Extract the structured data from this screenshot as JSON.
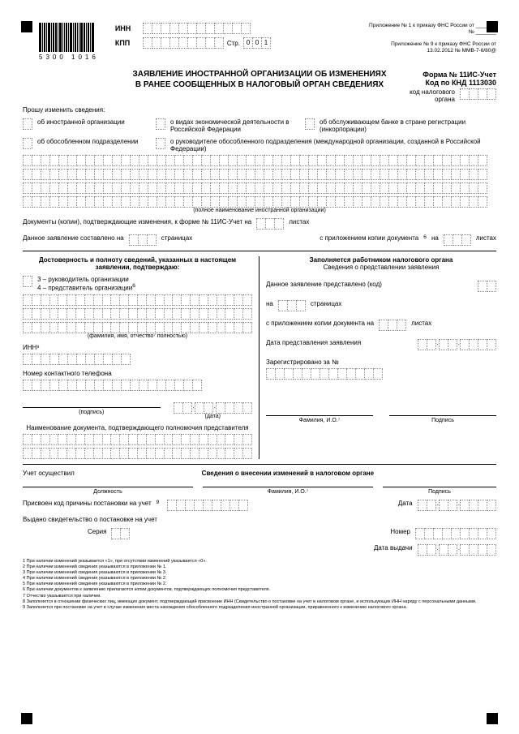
{
  "header": {
    "barcode_number": "5300 1016",
    "inn_label": "ИНН",
    "kpp_label": "КПП",
    "str_label": "Стр.",
    "str_value": [
      "0",
      "0",
      "1"
    ],
    "appendix1": "Приложение № 1 к приказу ФНС России от _______ № _______",
    "appendix2": "Приложение № 9 к приказу ФНС России от 13.02.2012 № ММВ-7-6/80@"
  },
  "title": {
    "line1": "ЗАЯВЛЕНИЕ ИНОСТРАННОЙ ОРГАНИЗАЦИИ ОБ ИЗМЕНЕНИЯХ",
    "line2": "В РАНЕЕ СООБЩЕННЫХ В НАЛОГОВЫЙ ОРГАН СВЕДЕНИЯХ",
    "form": "Форма № 11ИС-Учет",
    "knd": "Код по КНД 1113030"
  },
  "body": {
    "tax_code_label": "код налогового органа",
    "request": "Прошу изменить сведения:",
    "cb1": "об иностранной организации",
    "cb2": "о видах экономической деятельности в Российской Федерации",
    "cb3": "об обслуживающем банке в стране регистрации (инкорпорации)",
    "cb4": "об обособленном подразделении",
    "cb5": "о руководителе обособленного подразделения (международной организации, созданной в Российской Федерации)",
    "fullname_caption": "(полное наименование иностранной организации)",
    "docs_line": "Документы (копии), подтверждающие изменения, к форме № 11ИС-Учет на",
    "sheets": "листах",
    "composed": "Данное заявление составлено на",
    "pages": "страницах",
    "with_copy": "c приложением копии документа",
    "on_label": "на",
    "sheets2": "листах",
    "left": {
      "header": "Достоверность и полноту сведений, указанных в настоящем заявлении, подтверждаю:",
      "opt3": "3 – руководитель организации",
      "opt4": "4 – представитель организации",
      "fio_caption": "(фамилия, имя, отчество⁷ полностью)",
      "inn_label": "ИНН⁸",
      "phone": "Номер контактного телефона",
      "sig": "(подпись)",
      "date": "(дата)",
      "doc_title": "Наименование документа, подтверждающего полномочия представителя"
    },
    "right": {
      "header": "Заполняется работником налогового органа",
      "sub": "Сведения о представлении заявления",
      "presented": "Данное заявление представлено (код)",
      "on": "на",
      "pages": "страницах",
      "copy": "c приложением копии документа на",
      "sheets": "листах",
      "date_label": "Дата представления заявления",
      "reg": "Зарегистрировано за №",
      "fio": "Фамилия, И.О.⁷",
      "sig": "Подпись"
    },
    "audit": "Учет осуществил",
    "changes_header": "Сведения о внесении изменений в налоговом органе",
    "position": "Должность",
    "fio2": "Фамилия, И.О.⁷",
    "sig2": "Подпись",
    "kpp_assigned": "Присвоен код причины постановки на учет",
    "date_label": "Дата",
    "cert": "Выдано свидетельство о постановке на учет",
    "series": "Серия",
    "number": "Номер",
    "issue_date": "Дата выдачи"
  },
  "footnotes": [
    "1 При наличии изменений указывается «1», при отсутствии изменений указывается «0».",
    "2 При наличии изменений сведения указываются в приложении № 1.",
    "3 При наличии изменений сведения указываются в приложении № 3.",
    "4 При наличии изменений сведения указываются в приложении № 2.",
    "5 При наличии изменений сведения указываются в приложении № 2.",
    "6 При наличии документов к заявлению прилагаются копии документов, подтверждающих полномочия представителя.",
    "7 Отчество указывается при наличии.",
    "8 Заполняется в отношении физических лиц, имеющих документ, подтверждающий присвоение ИНН (Свидетельство о постановке на учет в налоговом органе, и использующих ИНН наряду с персональными данными.",
    "9 Заполняется при постановке на учет в случае изменения места нахождения обособленного подразделения иностранной организации, приравненного к изменению налогового органа."
  ]
}
